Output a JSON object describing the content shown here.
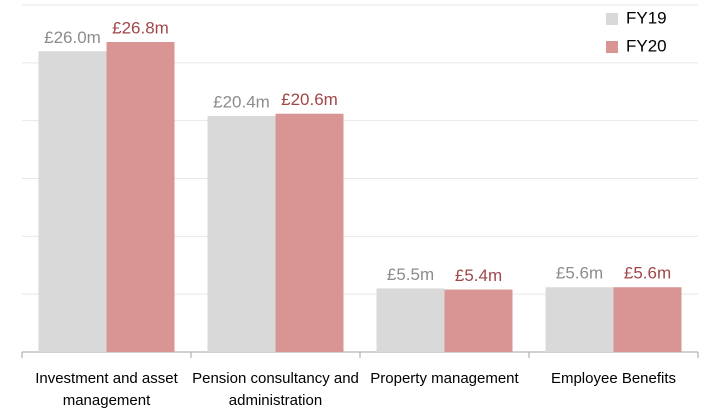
{
  "chart_data": {
    "type": "bar",
    "categories": [
      "Investment and asset management",
      "Pension consultancy and administration",
      "Property management",
      "Employee Benefits"
    ],
    "series": [
      {
        "name": "FY19",
        "color": "#d9d9d9",
        "label_color": "#8c8c8c",
        "values": [
          26.0,
          20.4,
          5.5,
          5.6
        ],
        "value_labels": [
          "£26.0m",
          "£20.4m",
          "£5.5m",
          "£5.6m"
        ]
      },
      {
        "name": "FY20",
        "color": "#d99594",
        "label_color": "#a0474a",
        "values": [
          26.8,
          20.6,
          5.4,
          5.6
        ],
        "value_labels": [
          "£26.8m",
          "£20.6m",
          "£5.4m",
          "£5.6m"
        ]
      }
    ],
    "ylim": [
      0,
      30
    ],
    "yticks": [
      0,
      5,
      10,
      15,
      20,
      25,
      30
    ],
    "grid": true,
    "legend": "top-right"
  }
}
